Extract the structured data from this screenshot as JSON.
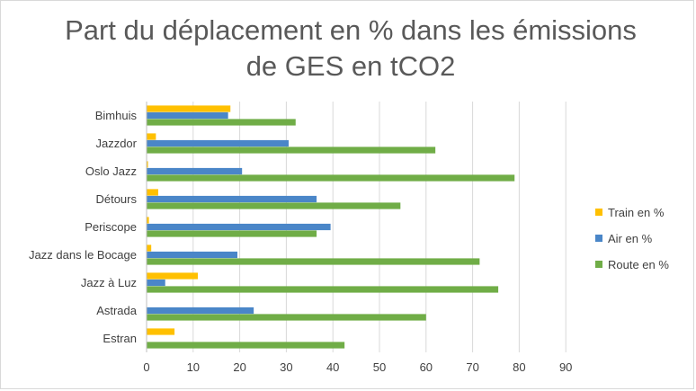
{
  "chart_data": {
    "type": "bar",
    "orientation": "horizontal",
    "title": "Part du déplacement en % dans les émissions de GES en tCO2",
    "title_lines": [
      "Part du déplacement en % dans les émissions",
      "de GES en tCO2"
    ],
    "xlabel": "",
    "ylabel": "",
    "categories": [
      "Bimhuis",
      "Jazzdor",
      "Oslo Jazz",
      "Détours",
      "Periscope",
      "Jazz dans le Bocage",
      "Jazz à Luz",
      "Astrada",
      "Estran"
    ],
    "series": [
      {
        "name": "Train en %",
        "color": "#FFC000",
        "values": [
          18,
          2,
          0.3,
          2.5,
          0.5,
          1,
          11,
          0,
          6
        ]
      },
      {
        "name": "Air en %",
        "color": "#4A86C8",
        "values": [
          17.5,
          30.5,
          20.5,
          36.5,
          39.5,
          19.5,
          4,
          23,
          0
        ]
      },
      {
        "name": "Route en %",
        "color": "#70AD47",
        "values": [
          32,
          62,
          79,
          54.5,
          36.5,
          71.5,
          75.5,
          60,
          42.5
        ]
      }
    ],
    "xlim": [
      0,
      90
    ],
    "xticks": [
      0,
      10,
      20,
      30,
      40,
      50,
      60,
      70,
      80,
      90
    ],
    "grid": "vertical",
    "legend_position": "right"
  }
}
